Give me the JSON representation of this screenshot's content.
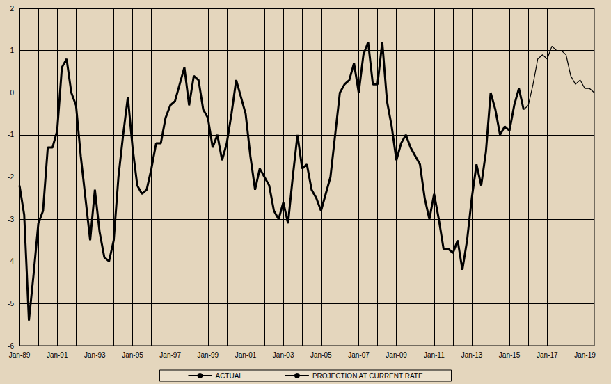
{
  "chart_data": {
    "type": "line",
    "categories": [
      "Jan-89",
      null,
      null,
      null,
      null,
      null,
      null,
      null,
      "Jan-91",
      null,
      null,
      null,
      null,
      null,
      null,
      null,
      "Jan-93",
      null,
      null,
      null,
      null,
      null,
      null,
      null,
      "Jan-95",
      null,
      null,
      null,
      null,
      null,
      null,
      null,
      "Jan-97",
      null,
      null,
      null,
      null,
      null,
      null,
      null,
      "Jan-99",
      null,
      null,
      null,
      null,
      null,
      null,
      null,
      "Jan-01",
      null,
      null,
      null,
      null,
      null,
      null,
      null,
      "Jan-03",
      null,
      null,
      null,
      null,
      null,
      null,
      null,
      "Jan-05",
      null,
      null,
      null,
      null,
      null,
      null,
      null,
      "Jan-07",
      null,
      null,
      null,
      null,
      null,
      null,
      null,
      "Jan-09",
      null,
      null,
      null,
      null,
      null,
      null,
      null,
      "Jan-11",
      null,
      null,
      null,
      null,
      null,
      null,
      null,
      "Jan-13",
      null,
      null,
      null,
      null,
      null,
      null,
      null,
      "Jan-15",
      null,
      null,
      null,
      null,
      null,
      null,
      null,
      "Jan-17",
      null,
      null,
      null,
      null,
      null,
      null,
      null,
      "Jan-19",
      null,
      null
    ],
    "series": [
      {
        "name": "ACTUAL",
        "color": "#000000",
        "line_style": "solid",
        "values": [
          -2.2,
          -2.9,
          -5.4,
          -4.3,
          -3.1,
          -2.8,
          -1.3,
          -1.3,
          -0.9,
          0.6,
          0.8,
          0.0,
          -0.3,
          -1.5,
          -2.5,
          -3.5,
          -2.3,
          -3.3,
          -3.9,
          -4.0,
          -3.5,
          -2.0,
          -1.0,
          -0.1,
          -1.3,
          -2.2,
          -2.4,
          -2.3,
          -1.8,
          -1.2,
          -1.2,
          -0.6,
          -0.3,
          -0.2,
          0.2,
          0.6,
          -0.3,
          0.4,
          0.3,
          -0.4,
          -0.6,
          -1.3,
          -1.0,
          -1.6,
          -1.2,
          -0.5,
          0.3,
          -0.1,
          -0.5,
          -1.5,
          -2.3,
          -1.8,
          -2.0,
          -2.2,
          -2.8,
          -3.0,
          -2.6,
          -3.1,
          -2.0,
          -1.0,
          -1.8,
          -1.7,
          -2.3,
          -2.5,
          -2.8,
          -2.4,
          -2.0,
          -1.0,
          0.0,
          0.2,
          0.3,
          0.7,
          0.0,
          0.9,
          1.2,
          0.2,
          0.2,
          1.2,
          -0.2,
          -0.8,
          -1.6,
          -1.2,
          -1.0,
          -1.3,
          -1.5,
          -1.7,
          -2.5,
          -3.0,
          -2.4,
          -3.0,
          -3.7,
          -3.7,
          -3.8,
          -3.5,
          -4.2,
          -3.5,
          -2.5,
          -1.7,
          -2.2,
          -1.4,
          0.0,
          -0.4,
          -1.0,
          -0.8,
          -0.9,
          -0.3,
          0.1,
          -0.4,
          null,
          null,
          null,
          null,
          null,
          null,
          null,
          null,
          null,
          null,
          null,
          null,
          null,
          null,
          null
        ]
      },
      {
        "name": "PROJECTION AT CURRENT RATE",
        "color": "#000000",
        "line_style": "solid",
        "values": [
          null,
          null,
          null,
          null,
          null,
          null,
          null,
          null,
          null,
          null,
          null,
          null,
          null,
          null,
          null,
          null,
          null,
          null,
          null,
          null,
          null,
          null,
          null,
          null,
          null,
          null,
          null,
          null,
          null,
          null,
          null,
          null,
          null,
          null,
          null,
          null,
          null,
          null,
          null,
          null,
          null,
          null,
          null,
          null,
          null,
          null,
          null,
          null,
          null,
          null,
          null,
          null,
          null,
          null,
          null,
          null,
          null,
          null,
          null,
          null,
          null,
          null,
          null,
          null,
          null,
          null,
          null,
          null,
          null,
          null,
          null,
          null,
          null,
          null,
          null,
          null,
          null,
          null,
          null,
          null,
          null,
          null,
          null,
          null,
          null,
          null,
          null,
          null,
          null,
          null,
          null,
          null,
          null,
          null,
          null,
          null,
          null,
          null,
          null,
          null,
          null,
          null,
          null,
          null,
          null,
          null,
          null,
          -0.4,
          -0.3,
          0.2,
          0.8,
          0.9,
          0.8,
          1.1,
          1.0,
          1.0,
          0.9,
          0.4,
          0.2,
          0.3,
          0.1,
          0.1,
          0.0
        ]
      }
    ],
    "ylim": [
      -6,
      2
    ],
    "yticks": [
      -6,
      -5,
      -4,
      -3,
      -2,
      -1,
      0,
      1,
      2
    ],
    "grid": true,
    "legend": "bottom"
  }
}
